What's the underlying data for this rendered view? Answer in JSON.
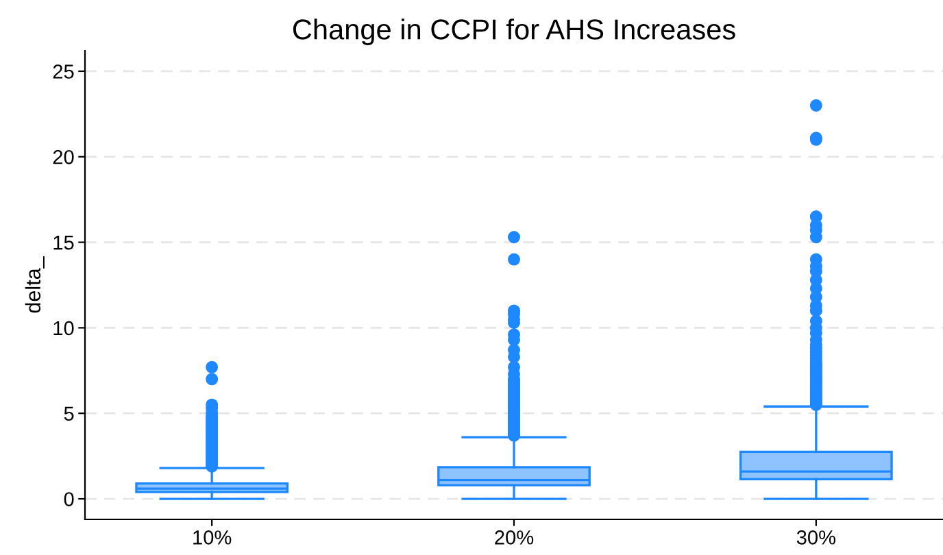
{
  "chart_data": {
    "type": "box",
    "title": "Change in CCPI for AHS Increases",
    "ylabel": "delta_",
    "categories": [
      "10%",
      "20%",
      "30%"
    ],
    "series": [
      {
        "color": "#1e88ff",
        "boxes": [
          {
            "low": 0,
            "q1": 0.4,
            "median": 0.6,
            "q3": 0.9,
            "high": 1.8,
            "outliers": [
              1.9,
              2.0,
              2.1,
              2.2,
              2.3,
              2.4,
              2.5,
              2.6,
              2.7,
              2.8,
              2.9,
              3.0,
              3.1,
              3.2,
              3.3,
              3.4,
              3.5,
              3.6,
              3.7,
              3.8,
              3.9,
              4.0,
              4.1,
              4.2,
              4.3,
              4.4,
              4.5,
              4.6,
              4.7,
              4.8,
              5.0,
              5.3,
              5.5,
              7.0,
              7.7
            ]
          },
          {
            "low": 0,
            "q1": 0.8,
            "median": 1.1,
            "q3": 1.85,
            "high": 3.6,
            "outliers": [
              3.7,
              3.8,
              3.9,
              4.0,
              4.1,
              4.2,
              4.3,
              4.4,
              4.5,
              4.6,
              4.7,
              4.8,
              4.9,
              5.0,
              5.1,
              5.2,
              5.3,
              5.4,
              5.5,
              5.6,
              5.7,
              5.8,
              5.9,
              6.0,
              6.1,
              6.2,
              6.3,
              6.4,
              6.5,
              6.6,
              6.7,
              6.8,
              6.9,
              7.0,
              7.3,
              7.7,
              8.3,
              8.7,
              9.3,
              9.6,
              10.3,
              10.5,
              10.8,
              11.0,
              14.0,
              15.3
            ]
          },
          {
            "low": 0,
            "q1": 1.15,
            "median": 1.6,
            "q3": 2.75,
            "high": 5.4,
            "outliers": [
              5.5,
              5.6,
              5.7,
              5.8,
              5.9,
              6.0,
              6.1,
              6.2,
              6.3,
              6.4,
              6.5,
              6.6,
              6.7,
              6.8,
              6.9,
              7.0,
              7.1,
              7.2,
              7.3,
              7.4,
              7.5,
              7.6,
              7.7,
              7.8,
              7.9,
              8.0,
              8.2,
              8.4,
              8.6,
              8.8,
              9.0,
              9.3,
              9.7,
              10.0,
              10.4,
              11.0,
              11.3,
              11.8,
              12.3,
              12.8,
              13.3,
              13.6,
              14.0,
              15.3,
              15.7,
              16.0,
              16.5,
              21.0,
              21.1,
              23.0
            ]
          }
        ]
      }
    ],
    "ylim": [
      -1.2,
      26.2
    ],
    "yticks": [
      0,
      5,
      10,
      15,
      20,
      25
    ],
    "grid": "y",
    "legend": false
  }
}
